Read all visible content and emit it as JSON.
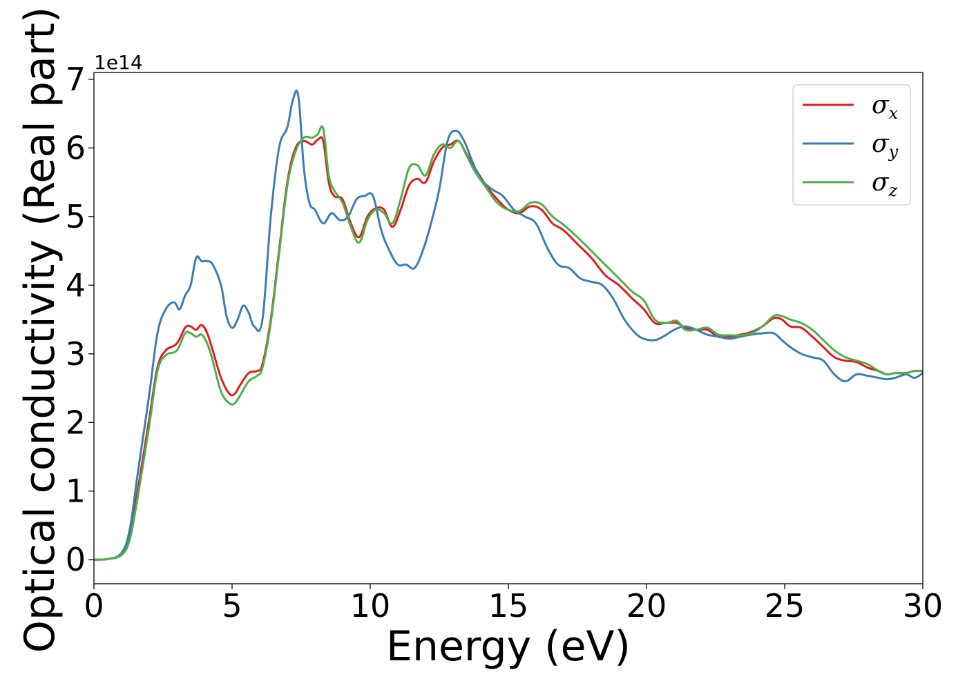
{
  "chart_data": {
    "type": "line",
    "title": "",
    "xlabel": "Energy (eV)",
    "ylabel": "Optical conductivity (Real part)",
    "y_offset_label": "1e14",
    "xlim": [
      0,
      30
    ],
    "ylim": [
      -0.35,
      7.1
    ],
    "xticks": [
      0,
      5,
      10,
      15,
      20,
      25,
      30
    ],
    "yticks": [
      0,
      1,
      2,
      3,
      4,
      5,
      6,
      7
    ],
    "grid": false,
    "legend_position": "top-right",
    "series": [
      {
        "name": "σx",
        "symbol": "σ",
        "subscript": "x",
        "color": "#e41a1c",
        "x": [
          0,
          0.5,
          1.0,
          1.3,
          1.6,
          2.0,
          2.3,
          2.6,
          3.0,
          3.3,
          3.5,
          3.7,
          3.9,
          4.1,
          4.3,
          4.6,
          4.9,
          5.1,
          5.3,
          5.6,
          5.9,
          6.1,
          6.4,
          6.7,
          7.0,
          7.3,
          7.6,
          7.9,
          8.1,
          8.3,
          8.5,
          8.7,
          9.0,
          9.3,
          9.6,
          9.9,
          10.2,
          10.5,
          10.8,
          11.1,
          11.4,
          11.7,
          12.0,
          12.3,
          12.6,
          12.9,
          13.2,
          13.5,
          13.8,
          14.2,
          14.6,
          15.0,
          15.4,
          15.8,
          16.2,
          16.6,
          17.0,
          17.5,
          18.0,
          18.5,
          19.0,
          19.5,
          19.9,
          20.3,
          20.7,
          21.1,
          21.4,
          21.8,
          22.2,
          22.6,
          23.0,
          23.4,
          23.8,
          24.2,
          24.6,
          24.9,
          25.2,
          25.6,
          26.0,
          26.4,
          26.8,
          27.2,
          27.6,
          28.0,
          28.4,
          28.7,
          29.0,
          29.4,
          29.7,
          30.0
        ],
        "values": [
          0.0,
          0.01,
          0.08,
          0.35,
          1.05,
          2.05,
          2.8,
          3.05,
          3.15,
          3.38,
          3.4,
          3.35,
          3.42,
          3.3,
          3.05,
          2.65,
          2.42,
          2.42,
          2.55,
          2.72,
          2.75,
          2.85,
          3.5,
          4.5,
          5.5,
          6.0,
          6.1,
          6.05,
          6.12,
          6.1,
          5.5,
          5.3,
          5.25,
          4.9,
          4.7,
          5.0,
          5.12,
          5.1,
          4.85,
          5.1,
          5.45,
          5.55,
          5.5,
          5.8,
          6.0,
          6.05,
          6.1,
          5.9,
          5.7,
          5.45,
          5.25,
          5.1,
          5.05,
          5.15,
          5.1,
          4.9,
          4.8,
          4.6,
          4.4,
          4.15,
          4.0,
          3.8,
          3.65,
          3.45,
          3.45,
          3.45,
          3.38,
          3.35,
          3.35,
          3.25,
          3.25,
          3.28,
          3.32,
          3.4,
          3.52,
          3.5,
          3.4,
          3.38,
          3.25,
          3.1,
          2.95,
          2.9,
          2.88,
          2.8,
          2.75,
          2.7,
          2.72,
          2.72,
          2.75,
          2.75
        ]
      },
      {
        "name": "σy",
        "symbol": "σ",
        "subscript": "y",
        "color": "#377eb8",
        "x": [
          0,
          0.5,
          1.0,
          1.3,
          1.6,
          2.0,
          2.3,
          2.6,
          2.9,
          3.1,
          3.3,
          3.5,
          3.7,
          3.9,
          4.1,
          4.3,
          4.6,
          4.8,
          5.0,
          5.2,
          5.4,
          5.6,
          5.8,
          6.1,
          6.4,
          6.7,
          7.0,
          7.2,
          7.4,
          7.6,
          7.8,
          8.0,
          8.3,
          8.6,
          8.9,
          9.2,
          9.5,
          9.8,
          10.1,
          10.4,
          10.7,
          11.0,
          11.3,
          11.6,
          11.9,
          12.2,
          12.5,
          12.8,
          13.1,
          13.4,
          13.7,
          14.0,
          14.4,
          14.8,
          15.2,
          15.6,
          16.0,
          16.4,
          16.8,
          17.2,
          17.6,
          18.0,
          18.4,
          18.8,
          19.2,
          19.6,
          19.9,
          20.3,
          20.6,
          21.0,
          21.4,
          21.8,
          22.2,
          22.6,
          23.0,
          23.4,
          23.8,
          24.2,
          24.6,
          24.9,
          25.2,
          25.6,
          26.0,
          26.4,
          26.8,
          27.2,
          27.6,
          28.0,
          28.4,
          28.7,
          29.0,
          29.4,
          29.7,
          30.0
        ],
        "values": [
          0.0,
          0.01,
          0.1,
          0.45,
          1.3,
          2.4,
          3.3,
          3.65,
          3.75,
          3.65,
          3.85,
          4.0,
          4.4,
          4.35,
          4.35,
          4.3,
          4.0,
          3.55,
          3.38,
          3.5,
          3.7,
          3.6,
          3.4,
          3.5,
          5.0,
          6.0,
          6.3,
          6.7,
          6.75,
          5.7,
          5.2,
          5.1,
          4.9,
          5.05,
          4.95,
          5.0,
          5.25,
          5.3,
          5.3,
          4.8,
          4.5,
          4.3,
          4.3,
          4.25,
          4.5,
          4.9,
          5.4,
          6.1,
          6.25,
          6.1,
          5.8,
          5.55,
          5.4,
          5.3,
          5.1,
          5.0,
          4.9,
          4.55,
          4.3,
          4.25,
          4.1,
          4.05,
          4.0,
          3.8,
          3.5,
          3.3,
          3.22,
          3.2,
          3.25,
          3.35,
          3.4,
          3.35,
          3.28,
          3.25,
          3.22,
          3.25,
          3.28,
          3.3,
          3.3,
          3.2,
          3.1,
          3.0,
          2.95,
          2.9,
          2.7,
          2.6,
          2.7,
          2.68,
          2.65,
          2.63,
          2.65,
          2.7,
          2.65,
          2.72
        ]
      },
      {
        "name": "σz",
        "symbol": "σ",
        "subscript": "z",
        "color": "#4daf4a",
        "x": [
          0,
          0.5,
          1.0,
          1.3,
          1.6,
          2.0,
          2.3,
          2.6,
          3.0,
          3.3,
          3.5,
          3.7,
          3.9,
          4.1,
          4.3,
          4.6,
          4.9,
          5.1,
          5.3,
          5.6,
          5.9,
          6.1,
          6.4,
          6.7,
          7.0,
          7.3,
          7.6,
          7.9,
          8.1,
          8.3,
          8.5,
          8.7,
          9.0,
          9.3,
          9.6,
          9.9,
          10.2,
          10.5,
          10.8,
          11.1,
          11.4,
          11.7,
          12.0,
          12.3,
          12.6,
          12.9,
          13.2,
          13.5,
          13.8,
          14.2,
          14.6,
          15.0,
          15.4,
          15.8,
          16.2,
          16.6,
          17.0,
          17.5,
          18.0,
          18.5,
          19.0,
          19.5,
          19.9,
          20.3,
          20.7,
          21.1,
          21.4,
          21.8,
          22.2,
          22.6,
          23.0,
          23.4,
          23.8,
          24.2,
          24.6,
          24.9,
          25.2,
          25.6,
          26.0,
          26.4,
          26.8,
          27.2,
          27.6,
          28.0,
          28.4,
          28.7,
          29.0,
          29.4,
          29.7,
          30.0
        ],
        "values": [
          0.0,
          0.01,
          0.07,
          0.3,
          0.95,
          1.95,
          2.75,
          2.98,
          3.05,
          3.3,
          3.3,
          3.25,
          3.28,
          3.15,
          2.9,
          2.45,
          2.28,
          2.28,
          2.4,
          2.6,
          2.68,
          2.8,
          3.45,
          4.45,
          5.45,
          5.95,
          6.15,
          6.15,
          6.2,
          6.28,
          5.6,
          5.38,
          5.2,
          4.85,
          4.62,
          4.95,
          5.1,
          5.05,
          4.9,
          5.25,
          5.7,
          5.75,
          5.6,
          5.9,
          6.05,
          6.0,
          6.1,
          5.88,
          5.65,
          5.42,
          5.2,
          5.1,
          5.08,
          5.2,
          5.18,
          5.0,
          4.88,
          4.7,
          4.5,
          4.3,
          4.1,
          3.9,
          3.78,
          3.5,
          3.45,
          3.48,
          3.35,
          3.35,
          3.38,
          3.28,
          3.27,
          3.27,
          3.3,
          3.4,
          3.55,
          3.55,
          3.5,
          3.45,
          3.35,
          3.2,
          3.05,
          2.95,
          2.9,
          2.85,
          2.75,
          2.7,
          2.72,
          2.72,
          2.75,
          2.75
        ]
      }
    ]
  }
}
